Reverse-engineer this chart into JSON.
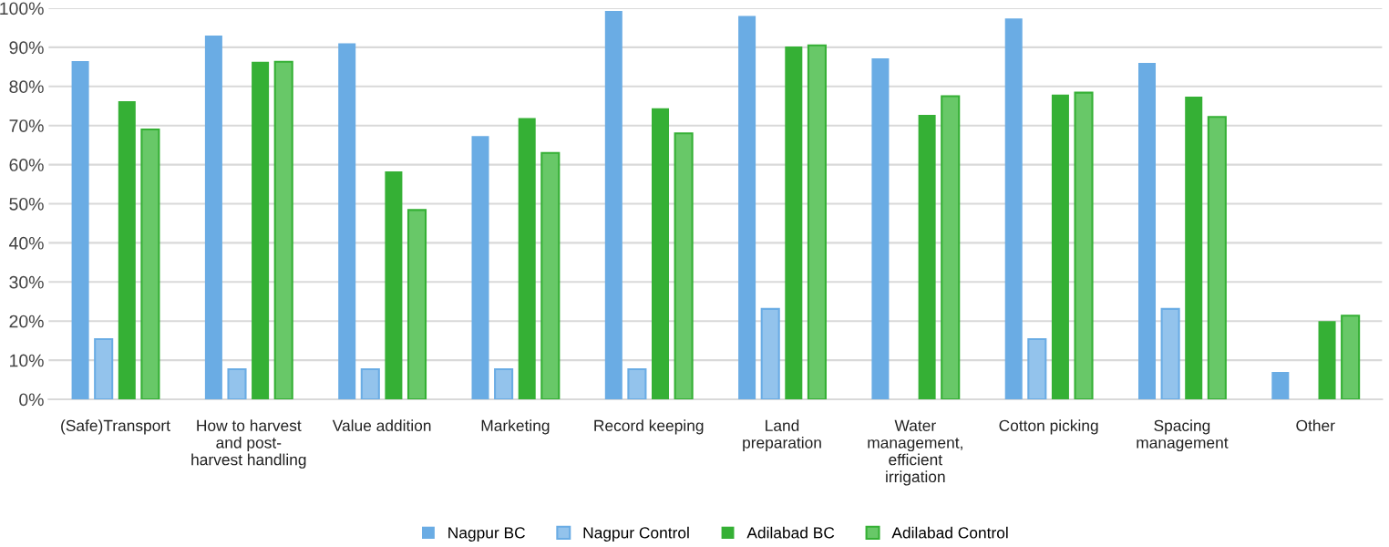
{
  "chart_data": {
    "type": "bar",
    "categories": [
      "(Safe)Transport",
      "How to harvest\nand post-\nharvest handling",
      "Value addition",
      "Marketing",
      "Record keeping",
      "Land\npreparation",
      "Water\nmanagement,\nefficient\nirrigation",
      "Cotton picking",
      "Spacing\nmanagement",
      "Other"
    ],
    "series": [
      {
        "name": "Nagpur BC",
        "color": "#6aace4",
        "values": [
          86.5,
          93,
          91,
          67.3,
          99.3,
          98,
          87.2,
          97.4,
          86,
          7
        ]
      },
      {
        "name": "Nagpur Control",
        "color": "#93c3ec",
        "values": [
          15.4,
          7.7,
          7.7,
          7.7,
          7.7,
          23.1,
          null,
          15.4,
          23.1,
          null
        ]
      },
      {
        "name": "Adilabad BC",
        "color": "#35b035",
        "values": [
          76.2,
          86.3,
          58.3,
          71.9,
          74.4,
          90.2,
          72.7,
          77.9,
          77.4,
          20
        ]
      },
      {
        "name": "Adilabad Control",
        "color": "#68c868",
        "values": [
          69,
          86.3,
          48.4,
          63,
          68,
          90.5,
          77.5,
          78.4,
          72.2,
          21.4
        ]
      }
    ],
    "ylim": [
      0,
      100
    ],
    "yticks": [
      {
        "value": 0,
        "label": "0%"
      },
      {
        "value": 10,
        "label": "10%"
      },
      {
        "value": 20,
        "label": "20%"
      },
      {
        "value": 30,
        "label": "30%"
      },
      {
        "value": 40,
        "label": "40%"
      },
      {
        "value": 50,
        "label": "50%"
      },
      {
        "value": 60,
        "label": "60%"
      },
      {
        "value": 70,
        "label": "70%"
      },
      {
        "value": 80,
        "label": "80%"
      },
      {
        "value": 90,
        "label": "90%"
      },
      {
        "value": 100,
        "label": "100%"
      }
    ],
    "grid": "y",
    "legend": "bottom"
  }
}
